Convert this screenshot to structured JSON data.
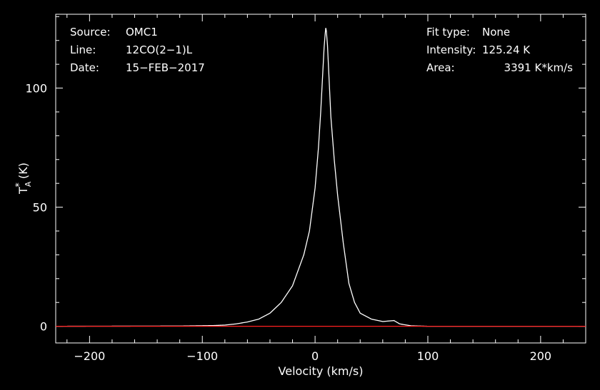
{
  "chart_data": {
    "type": "line",
    "xlabel": "Velocity (km/s)",
    "ylabel": {
      "base": "T",
      "sub": "A",
      "sup": "*",
      "unit": " (K)"
    },
    "xlim": [
      -230,
      240
    ],
    "ylim": [
      -7,
      131
    ],
    "x_ticks": [
      -200,
      -100,
      0,
      100,
      200
    ],
    "y_ticks": [
      0,
      50,
      100
    ],
    "x_tick_labels": [
      "−200",
      "−100",
      "0",
      "100",
      "200"
    ],
    "y_tick_labels": [
      "0",
      "50",
      "100"
    ],
    "grid": false,
    "series": [
      {
        "color": "#ffffff",
        "peak_velocity": 9.5,
        "peak_intensity": 125.24,
        "points": [
          [
            -230,
            0
          ],
          [
            -120,
            0.1
          ],
          [
            -90,
            0.3
          ],
          [
            -80,
            0.5
          ],
          [
            -70,
            1.0
          ],
          [
            -60,
            1.8
          ],
          [
            -50,
            3.0
          ],
          [
            -40,
            5.5
          ],
          [
            -30,
            10.0
          ],
          [
            -20,
            17.0
          ],
          [
            -10,
            30.0
          ],
          [
            -5,
            40.0
          ],
          [
            0,
            58.0
          ],
          [
            3,
            75.0
          ],
          [
            5,
            90.0
          ],
          [
            7,
            108.0
          ],
          [
            8,
            117.0
          ],
          [
            9,
            123.0
          ],
          [
            9.5,
            125.24
          ],
          [
            10,
            124.0
          ],
          [
            11,
            118.0
          ],
          [
            12,
            108.0
          ],
          [
            14,
            88.0
          ],
          [
            17,
            70.0
          ],
          [
            20,
            55.0
          ],
          [
            25,
            35.0
          ],
          [
            30,
            18.0
          ],
          [
            35,
            10.0
          ],
          [
            40,
            5.5
          ],
          [
            50,
            3.0
          ],
          [
            60,
            2.0
          ],
          [
            70,
            2.4
          ],
          [
            75,
            1.0
          ],
          [
            85,
            0.2
          ],
          [
            100,
            0.0
          ],
          [
            240,
            0.0
          ]
        ]
      },
      {
        "color": "#ff2020",
        "points": [
          [
            -230,
            0
          ],
          [
            240,
            0
          ]
        ]
      }
    ],
    "annotations_left": [
      {
        "key": "Source:",
        "value": "OMC1"
      },
      {
        "key": "Line:",
        "value": "12CO(2−1)L"
      },
      {
        "key": "Date:",
        "value": "15−FEB−2017"
      }
    ],
    "annotations_right": [
      {
        "key": "Fit type:",
        "value": "None"
      },
      {
        "key": "Intensity:",
        "value": "125.24 K"
      },
      {
        "key": "Area:",
        "value": "3391 K*km/s"
      }
    ]
  }
}
